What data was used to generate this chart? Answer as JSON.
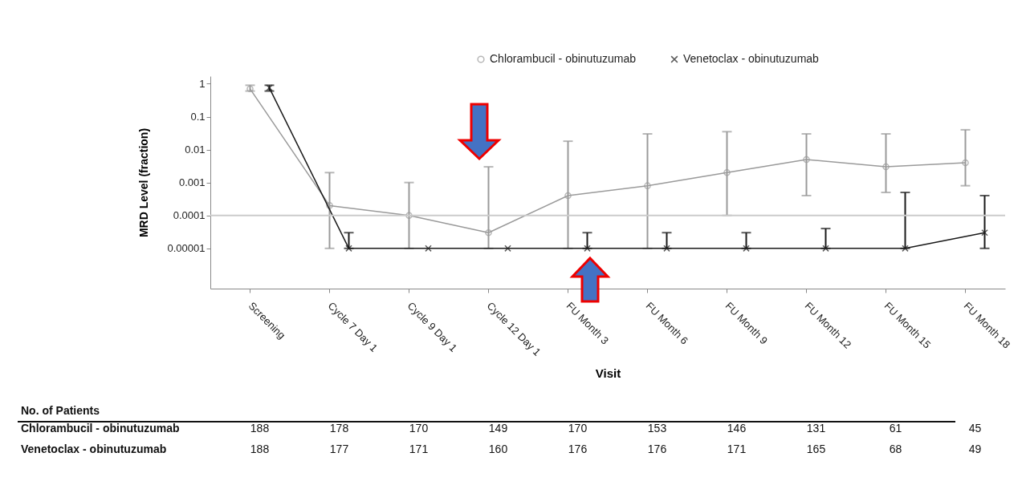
{
  "chart_data": {
    "type": "line",
    "ylabel": "MRD Level (fraction)",
    "xlabel": "Visit",
    "log": "y",
    "categories": [
      "Screening",
      "Cycle 7 Day 1",
      "Cycle 9 Day 1",
      "Cycle 12 Day 1",
      "FU Month 3",
      "FU Month 6",
      "FU Month 9",
      "FU Month 12",
      "FU Month 15",
      "FU Month 18"
    ],
    "series": [
      {
        "name": "Chlorambucil - obinutuzumab",
        "color": "#9a9a9a",
        "marker": "circle",
        "values": [
          0.7,
          0.0002,
          0.0001,
          3e-05,
          0.0004,
          0.0008,
          0.002,
          0.005,
          0.003,
          0.004
        ],
        "errors": [
          [
            0.6,
            0.9
          ],
          [
            1e-05,
            0.002
          ],
          [
            1e-05,
            0.001
          ],
          [
            1e-05,
            0.003
          ],
          [
            1e-05,
            0.018
          ],
          [
            1e-05,
            0.03
          ],
          [
            0.0001,
            0.035
          ],
          [
            0.0004,
            0.03
          ],
          [
            0.0005,
            0.03
          ],
          [
            0.0008,
            0.04
          ]
        ]
      },
      {
        "name": "Venetoclax - obinutuzumab",
        "color": "#1a1a1a",
        "marker": "cross",
        "values": [
          0.75,
          1e-05,
          1e-05,
          1e-05,
          1e-05,
          1e-05,
          1e-05,
          1e-05,
          1e-05,
          3e-05
        ],
        "errors": [
          [
            0.6,
            0.9
          ],
          [
            1e-05,
            3e-05
          ],
          null,
          null,
          [
            1e-05,
            3e-05
          ],
          [
            1e-05,
            3e-05
          ],
          [
            1e-05,
            3e-05
          ],
          [
            1e-05,
            4e-05
          ],
          [
            1e-05,
            0.0005
          ],
          [
            1e-05,
            0.0004
          ]
        ]
      }
    ],
    "ylim": [
      6e-07,
      1.7
    ],
    "yticks": [
      {
        "value": 1e-05,
        "label": "0.00001"
      },
      0.0001,
      0.001,
      0.01,
      0.1,
      1
    ],
    "ref_lines": [
      {
        "axis": "y",
        "value": 0.0001,
        "color": "#cccccc"
      }
    ],
    "legend": "top right",
    "grid": false,
    "annotations": [
      "No. of Patients",
      "Chlorambucil - obinutuzumab",
      "188",
      "178",
      "170",
      "149",
      "170",
      "153",
      "146",
      "131",
      "61",
      "45",
      "Venetoclax - obinutuzumab",
      "188",
      "177",
      "171",
      "160",
      "176",
      "176",
      "171",
      "165",
      "68",
      "49"
    ]
  }
}
